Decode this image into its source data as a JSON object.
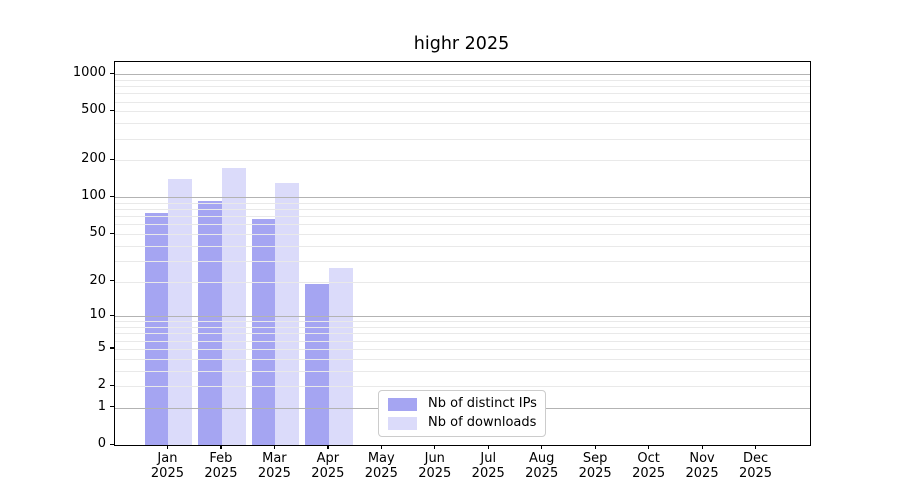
{
  "chart_data": {
    "type": "bar",
    "title": "highr 2025",
    "x_categories": [
      "Jan",
      "Feb",
      "Mar",
      "Apr",
      "May",
      "Jun",
      "Jul",
      "Aug",
      "Sep",
      "Oct",
      "Nov",
      "Dec"
    ],
    "x_year": "2025",
    "series": [
      {
        "name": "Nb of distinct IPs",
        "color": "#a5a5f2",
        "values": [
          74,
          93,
          66,
          19,
          null,
          null,
          null,
          null,
          null,
          null,
          null,
          null
        ]
      },
      {
        "name": "Nb of downloads",
        "color": "#dbdbfa",
        "values": [
          140,
          175,
          132,
          26,
          null,
          null,
          null,
          null,
          null,
          null,
          null,
          null
        ]
      }
    ],
    "yscale": "log1p",
    "yticks": [
      0,
      1,
      2,
      5,
      10,
      20,
      50,
      100,
      200,
      500,
      1000
    ],
    "ylim": [
      0,
      1258
    ],
    "grid": {
      "on": true,
      "major_lines": [
        1,
        10,
        100,
        1000
      ],
      "minor_lines": [
        2,
        3,
        4,
        5,
        6,
        7,
        8,
        9,
        20,
        30,
        40,
        50,
        60,
        70,
        80,
        90,
        200,
        300,
        400,
        500,
        600,
        700,
        800,
        900
      ],
      "major_color": "#b3b3b3",
      "minor_color": "#e9e9e9"
    },
    "legend_position": "lower center",
    "xlabel": "",
    "ylabel": ""
  }
}
